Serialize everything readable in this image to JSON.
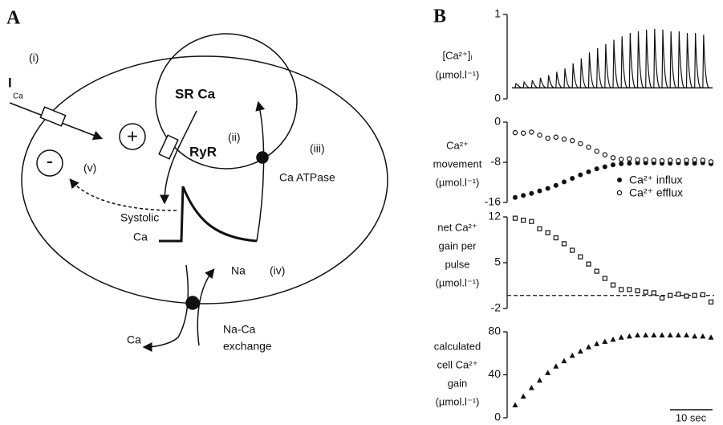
{
  "diagram": {
    "panel": "A",
    "labels": {
      "i": "(i)",
      "ica": "I",
      "ica_sub": "Ca",
      "plus": "+",
      "minus": "-",
      "v": "(v)",
      "sr": "SR Ca",
      "ryr": "RyR",
      "ii": "(ii)",
      "iii": "(iii)",
      "atpase": "Ca ATPase",
      "systolic": "Systolic",
      "systolic_ca": "Ca",
      "na": "Na",
      "iv": "(iv)",
      "ca_out": "Ca",
      "exchange_1": "Na-Ca",
      "exchange_2": "exchange"
    }
  },
  "panel_b": "B",
  "scale_bar": "10 sec",
  "chart_data": [
    {
      "type": "spikes",
      "ylabel": [
        "[Ca²⁺]ᵢ",
        "(µmol.l⁻¹)"
      ],
      "ylim": [
        0,
        1
      ],
      "yticks": [
        0,
        1
      ],
      "color": "#111111",
      "baseline": 0.13,
      "values": [
        0.18,
        0.2,
        0.22,
        0.25,
        0.28,
        0.32,
        0.36,
        0.42,
        0.48,
        0.55,
        0.6,
        0.65,
        0.7,
        0.74,
        0.78,
        0.8,
        0.82,
        0.83,
        0.82,
        0.8,
        0.8,
        0.78,
        0.78,
        0.76
      ]
    },
    {
      "type": "scatter",
      "ylabel": [
        "Ca²⁺",
        "movement",
        "(µmol.l⁻¹)"
      ],
      "ylim": [
        -16,
        0
      ],
      "yticks": [
        -16,
        -8,
        0
      ],
      "legend": "lower right",
      "series": [
        {
          "name": "Ca²⁺ influx",
          "color": "#111111",
          "marker": "circle",
          "values": [
            -15,
            -14.6,
            -14.2,
            -13.7,
            -13.2,
            -12.6,
            -11.9,
            -11.2,
            -10.5,
            -9.9,
            -9.3,
            -8.9,
            -8.5,
            -8.3,
            -8.2,
            -8.1,
            -8.1,
            -8.1,
            -8.2,
            -8.2,
            -8.1,
            -8.2,
            -8.2,
            -8.1,
            -8.3
          ]
        },
        {
          "name": "Ca²⁺ efflux",
          "color": "#111111",
          "marker": "open-circle",
          "values": [
            -2.1,
            -2.2,
            -2,
            -2.6,
            -3.2,
            -3,
            -3.4,
            -3.7,
            -4.3,
            -5,
            -5.8,
            -6.5,
            -7.1,
            -7.4,
            -7.3,
            -7.5,
            -7.5,
            -7.6,
            -7.7,
            -7.6,
            -7.7,
            -7.6,
            -7.5,
            -7.6,
            -7.9
          ]
        }
      ]
    },
    {
      "type": "scatter",
      "ylabel": [
        "net Ca²⁺",
        "gain per",
        "pulse",
        "(µmol.l⁻¹)"
      ],
      "ylim": [
        -2,
        12
      ],
      "yticks": [
        -2,
        5,
        12
      ],
      "reference_line": 0,
      "series": [
        {
          "color": "#111111",
          "marker": "open-square",
          "values": [
            11.8,
            11.5,
            11.3,
            10.2,
            9.6,
            8.8,
            7.9,
            6.9,
            5.9,
            4.8,
            3.7,
            2.6,
            1.6,
            0.9,
            0.9,
            0.7,
            0.5,
            0.4,
            -0.4,
            0,
            0.2,
            -0.1,
            0,
            0.1,
            -1
          ]
        }
      ]
    },
    {
      "type": "scatter",
      "ylabel": [
        "calculated",
        "cell Ca²⁺",
        "gain",
        "(µmol.l⁻¹)"
      ],
      "ylim": [
        0,
        80
      ],
      "yticks": [
        0,
        40,
        80
      ],
      "series": [
        {
          "color": "#111111",
          "marker": "triangle",
          "values": [
            12,
            20,
            28,
            35,
            42,
            48,
            53,
            58,
            62,
            66,
            69,
            71,
            73,
            75,
            76,
            77,
            77,
            77,
            77,
            77,
            77,
            77,
            76,
            76,
            75
          ]
        }
      ]
    }
  ]
}
